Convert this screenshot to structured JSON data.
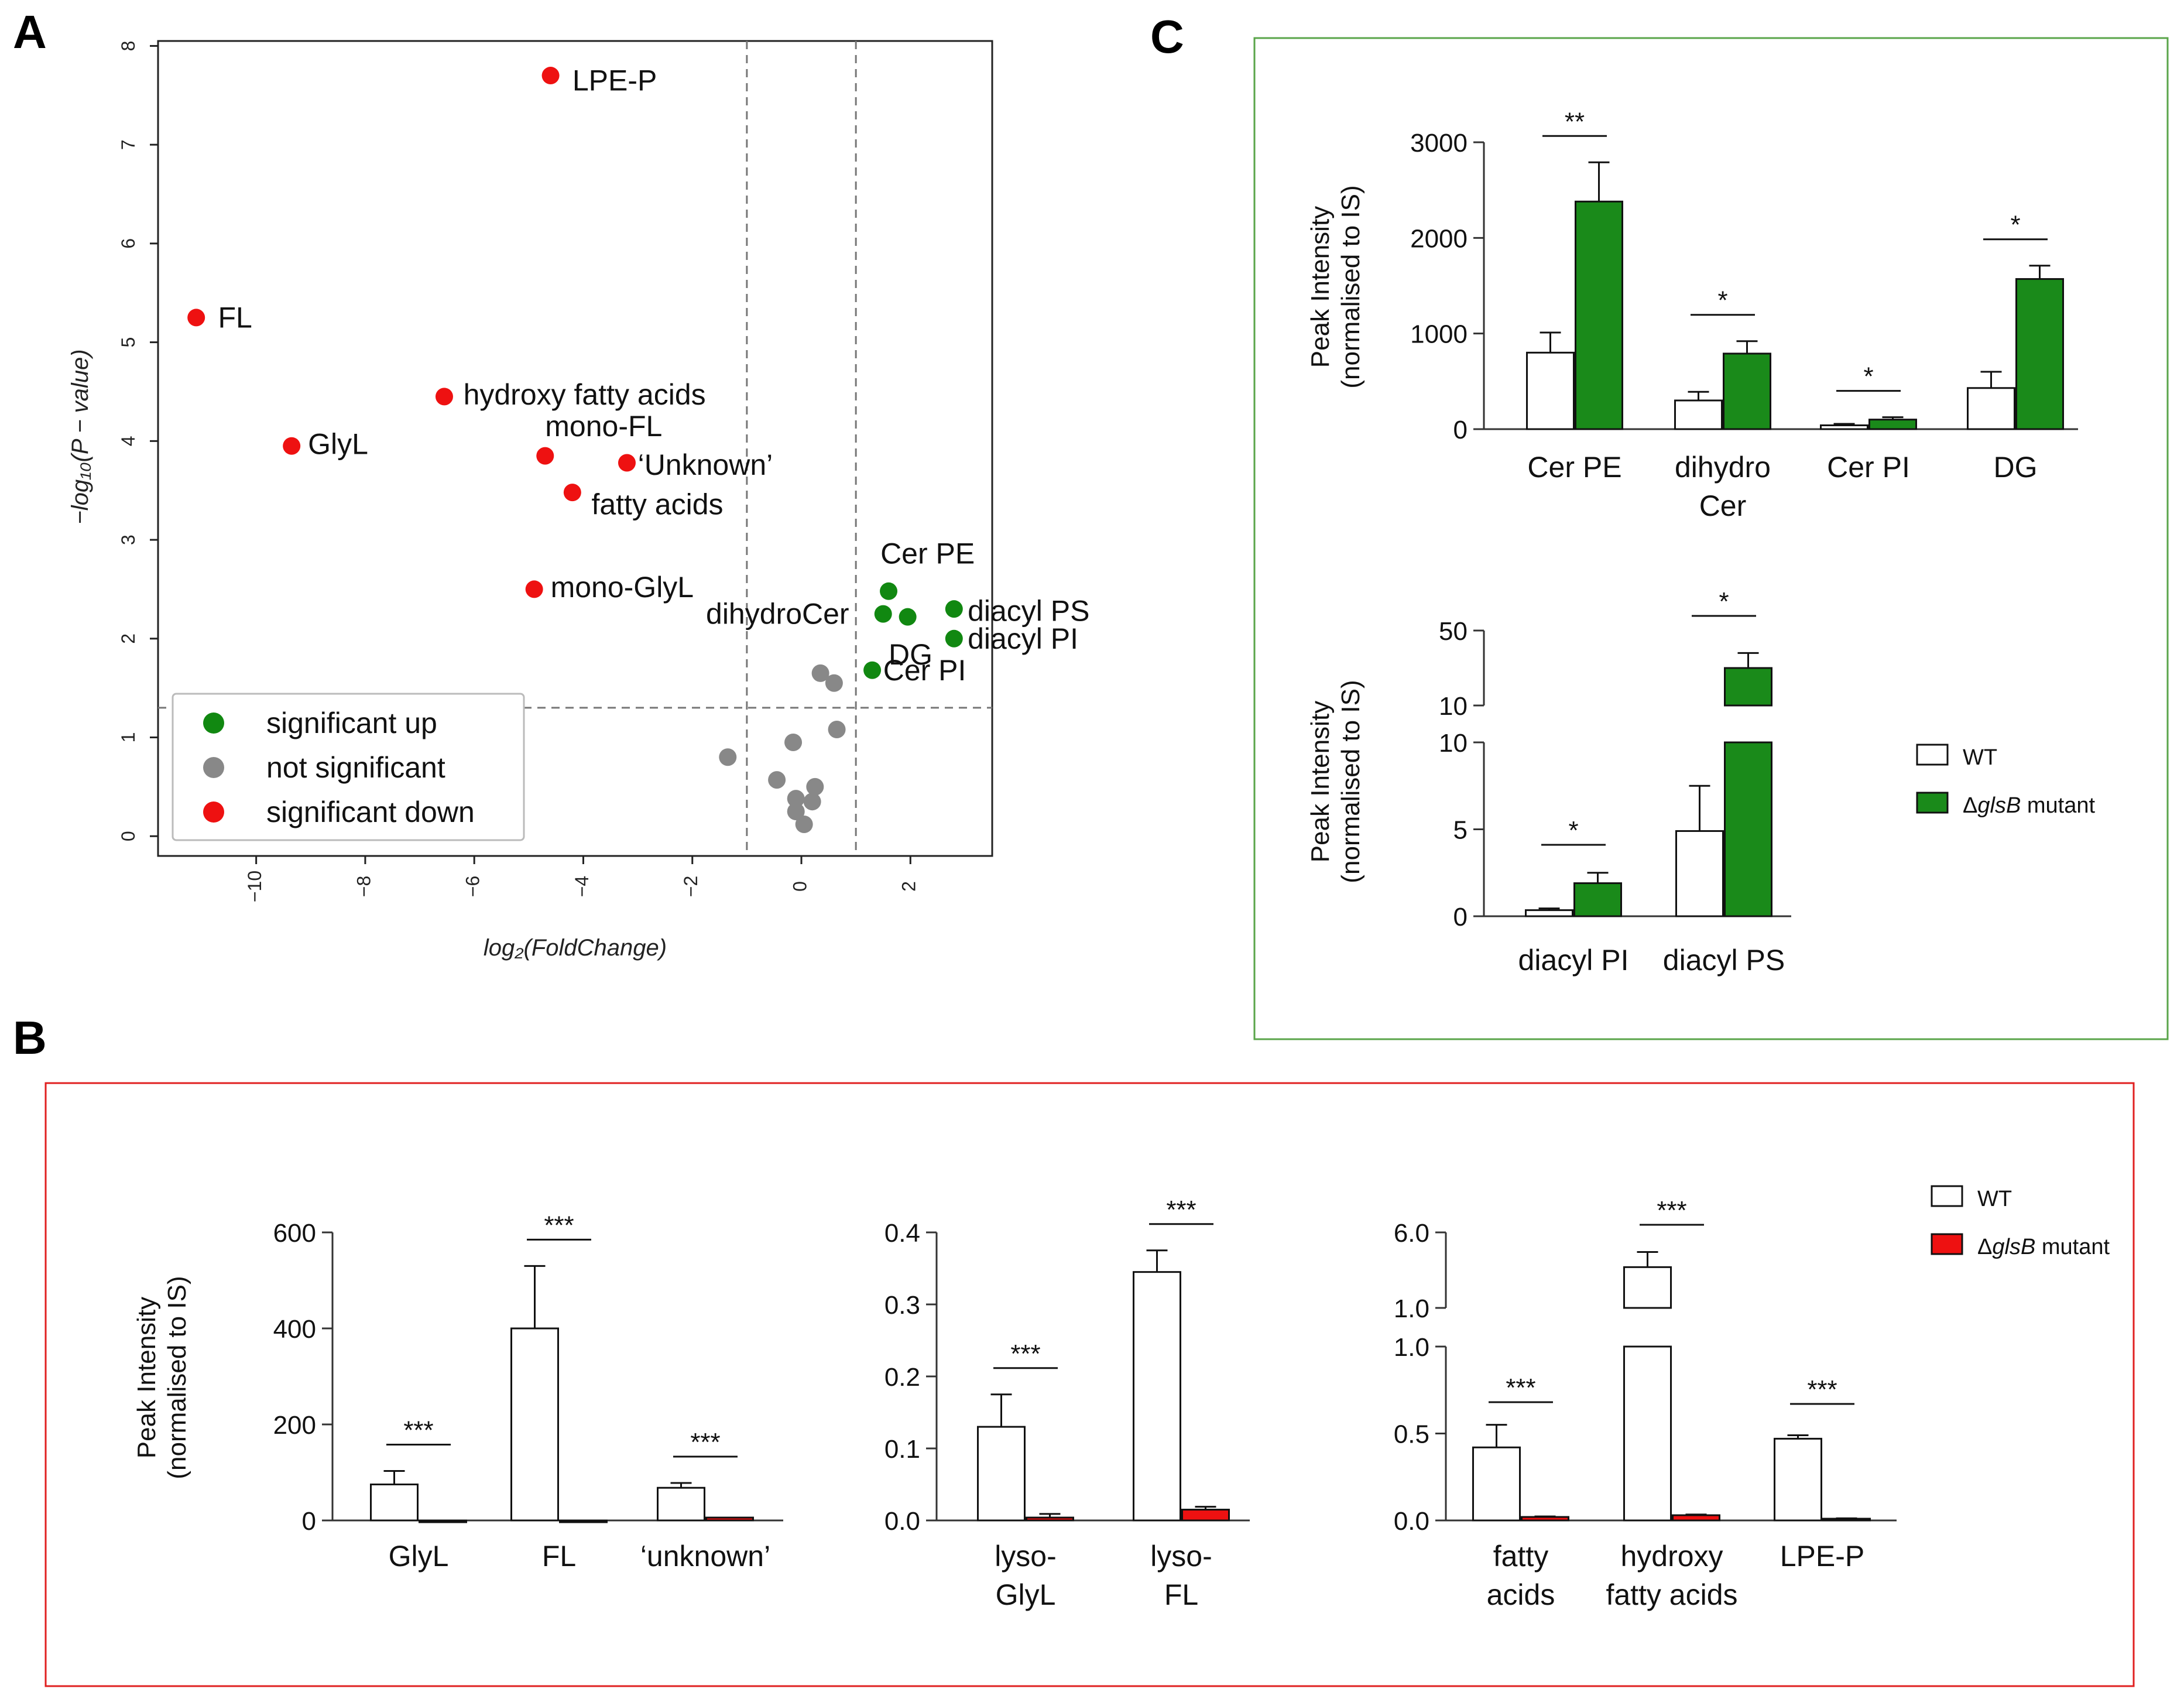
{
  "panel_labels": {
    "a": "A",
    "b": "B",
    "c": "C"
  },
  "chart_data": [
    {
      "id": "A",
      "type": "scatter",
      "xlabel": "log₂(FoldChange)",
      "ylabel": "−log₁₀(P − value)",
      "xlim": [
        -11.8,
        3.5
      ],
      "ylim": [
        -0.2,
        8.05
      ],
      "xticks": [
        -10,
        -8,
        -6,
        -4,
        -2,
        0,
        2
      ],
      "yticks": [
        0,
        1,
        2,
        3,
        4,
        5,
        6,
        7,
        8
      ],
      "ticklabels_x": [
        "−10",
        "−8",
        "−6",
        "−4",
        "−2",
        "0",
        "2"
      ],
      "ticklabels_y": [
        "0",
        "1",
        "2",
        "3",
        "4",
        "5",
        "6",
        "7",
        "8"
      ],
      "grid": false,
      "thresholds": {
        "x": [
          -1,
          1
        ],
        "y": 1.3
      },
      "legend": {
        "position": "bottom-left",
        "entries": [
          {
            "label": "significant up",
            "color": "#118811"
          },
          {
            "label": "not significant",
            "color": "#888888"
          },
          {
            "label": "significant down",
            "color": "#ee1111"
          }
        ]
      },
      "colors": {
        "up": "#118811",
        "ns": "#888888",
        "down": "#ee1111"
      },
      "points": [
        {
          "x": -4.6,
          "y": 7.7,
          "group": "down",
          "label": "LPE-P",
          "ldx": 0.4,
          "ldy": -0.05
        },
        {
          "x": -11.1,
          "y": 5.25,
          "group": "down",
          "label": "FL",
          "ldx": 0.4,
          "ldy": 0.0
        },
        {
          "x": -6.55,
          "y": 4.45,
          "group": "down",
          "label": "hydroxy fatty acids",
          "ldx": 0.35,
          "ldy": 0.02
        },
        {
          "x": -9.35,
          "y": 3.95,
          "group": "down",
          "label": "GlyL",
          "ldx": 0.3,
          "ldy": 0.02
        },
        {
          "x": -4.7,
          "y": 3.85,
          "group": "down",
          "label": "mono-FL",
          "ldx": 0.0,
          "ldy": 0.3
        },
        {
          "x": -3.2,
          "y": 3.78,
          "group": "down",
          "label": "‘Unknown’",
          "ldx": 0.2,
          "ldy": -0.02
        },
        {
          "x": -4.2,
          "y": 3.48,
          "group": "down",
          "label": "fatty acids",
          "ldx": 0.35,
          "ldy": -0.12
        },
        {
          "x": -4.9,
          "y": 2.5,
          "group": "down",
          "label": "mono-GlyL",
          "ldx": 0.3,
          "ldy": 0.02
        },
        {
          "x": 1.6,
          "y": 2.48,
          "group": "up",
          "label": "Cer PE",
          "ldx": -0.15,
          "ldy": 0.38
        },
        {
          "x": 1.5,
          "y": 2.25,
          "group": "up",
          "label": "dihydroCer",
          "ldx": -3.25,
          "ldy": 0.0
        },
        {
          "x": 1.95,
          "y": 2.22,
          "group": "up",
          "label": "DG",
          "ldx": -0.35,
          "ldy": -0.38
        },
        {
          "x": 2.8,
          "y": 2.3,
          "group": "up",
          "label": "diacyl PS",
          "ldx": 0.25,
          "ldy": -0.02
        },
        {
          "x": 2.8,
          "y": 2.0,
          "group": "up",
          "label": "diacyl PI",
          "ldx": 0.25,
          "ldy": 0.0
        },
        {
          "x": 1.3,
          "y": 1.68,
          "group": "up",
          "label": "Cer PI",
          "ldx": 0.2,
          "ldy": 0.0
        },
        {
          "x": 0.35,
          "y": 1.65,
          "group": "ns"
        },
        {
          "x": 0.6,
          "y": 1.55,
          "group": "ns"
        },
        {
          "x": 0.65,
          "y": 1.08,
          "group": "ns"
        },
        {
          "x": -0.15,
          "y": 0.95,
          "group": "ns"
        },
        {
          "x": -1.35,
          "y": 0.8,
          "group": "ns"
        },
        {
          "x": -0.45,
          "y": 0.57,
          "group": "ns"
        },
        {
          "x": 0.25,
          "y": 0.5,
          "group": "ns"
        },
        {
          "x": -0.1,
          "y": 0.38,
          "group": "ns"
        },
        {
          "x": 0.2,
          "y": 0.35,
          "group": "ns"
        },
        {
          "x": -0.1,
          "y": 0.25,
          "group": "ns"
        },
        {
          "x": 0.05,
          "y": 0.12,
          "group": "ns"
        }
      ]
    },
    {
      "id": "C1",
      "type": "bar",
      "ylabel": [
        "Peak Intensity",
        "(normalised to IS)"
      ],
      "categories": [
        [
          "Cer PE"
        ],
        [
          "dihydro",
          "Cer"
        ],
        [
          "Cer PI"
        ],
        [
          "DG"
        ]
      ],
      "ylim": [
        0,
        3000
      ],
      "yticks": [
        0,
        1000,
        2000,
        3000
      ],
      "ticklabels_y": [
        "0",
        "1000",
        "2000",
        "3000"
      ],
      "series": [
        {
          "name": "WT",
          "color": "#ffffff",
          "values": [
            800,
            300,
            40,
            430
          ],
          "errors": [
            210,
            90,
            15,
            170
          ]
        },
        {
          "name": "ΔglsB mutant",
          "color": "#1a8a1a",
          "values": [
            2380,
            790,
            100,
            1570
          ],
          "errors": [
            410,
            130,
            25,
            140
          ]
        }
      ],
      "significance": [
        "**",
        "*",
        "*",
        "*"
      ]
    },
    {
      "id": "C2",
      "type": "bar",
      "broken_axis": true,
      "ylabel": [
        "Peak Intensity",
        "(normalised to IS)"
      ],
      "categories": [
        [
          "diacyl PI"
        ],
        [
          "diacyl PS"
        ]
      ],
      "ylim_lower": [
        0,
        10
      ],
      "ylim_upper": [
        10,
        50
      ],
      "yticks_lower": [
        0,
        5,
        10
      ],
      "yticks_upper": [
        10,
        50
      ],
      "ticklabels_y_lower": [
        "0",
        "5",
        "10"
      ],
      "ticklabels_y_upper": [
        "10",
        "50"
      ],
      "series": [
        {
          "name": "WT",
          "color": "#ffffff",
          "values": [
            0.35,
            4.9
          ],
          "errors": [
            0.1,
            2.6
          ]
        },
        {
          "name": "ΔglsB mutant",
          "color": "#1a8a1a",
          "values": [
            1.9,
            30
          ],
          "errors": [
            0.6,
            8
          ]
        }
      ],
      "significance": [
        "*",
        "*"
      ],
      "legend": {
        "position": "right",
        "entries": [
          {
            "label": "WT",
            "italic": "",
            "suffix": "",
            "color": "#ffffff"
          },
          {
            "label": "Δ",
            "italic": "glsB",
            "suffix": " mutant",
            "color": "#1a8a1a"
          }
        ]
      }
    },
    {
      "id": "B1",
      "type": "bar",
      "ylabel": [
        "Peak Intensity",
        "(normalised to IS)"
      ],
      "categories": [
        [
          "GlyL"
        ],
        [
          "FL"
        ],
        [
          "‘unknown’"
        ]
      ],
      "ylim": [
        0,
        600
      ],
      "yticks": [
        0,
        200,
        400,
        600
      ],
      "ticklabels_y": [
        "0",
        "200",
        "400",
        "600"
      ],
      "series": [
        {
          "name": "WT",
          "color": "#ffffff",
          "values": [
            75,
            400,
            68
          ],
          "errors": [
            28,
            130,
            10
          ]
        },
        {
          "name": "ΔglsB mutant",
          "color": "#ee1111",
          "values": [
            0,
            0,
            6
          ],
          "errors": [
            0,
            0,
            0
          ]
        }
      ],
      "significance": [
        "***",
        "***",
        "***"
      ]
    },
    {
      "id": "B2",
      "type": "bar",
      "ylabel": [],
      "categories": [
        [
          "lyso-",
          "GlyL"
        ],
        [
          "lyso-",
          "FL"
        ]
      ],
      "ylim": [
        0,
        0.4
      ],
      "yticks": [
        0,
        0.1,
        0.2,
        0.3,
        0.4
      ],
      "ticklabels_y": [
        "0.0",
        "0.1",
        "0.2",
        "0.3",
        "0.4"
      ],
      "series": [
        {
          "name": "WT",
          "color": "#ffffff",
          "values": [
            0.13,
            0.345
          ],
          "errors": [
            0.045,
            0.03
          ]
        },
        {
          "name": "ΔglsB mutant",
          "color": "#ee1111",
          "values": [
            0.004,
            0.015
          ],
          "errors": [
            0.005,
            0.004
          ]
        }
      ],
      "significance": [
        "***",
        "***"
      ]
    },
    {
      "id": "B3",
      "type": "bar",
      "broken_axis": true,
      "ylabel": [],
      "categories": [
        [
          "fatty",
          "acids"
        ],
        [
          "hydroxy",
          "fatty acids"
        ],
        [
          "LPE-P"
        ]
      ],
      "ylim_lower": [
        0,
        1.0
      ],
      "ylim_upper": [
        1.0,
        6.0
      ],
      "yticks_lower": [
        0,
        0.5,
        1.0
      ],
      "yticks_upper": [
        1.0,
        6.0
      ],
      "ticklabels_y_lower": [
        "0.0",
        "0.5",
        "1.0"
      ],
      "ticklabels_y_upper": [
        "1.0",
        "6.0"
      ],
      "series": [
        {
          "name": "WT",
          "color": "#ffffff",
          "values": [
            0.42,
            3.7,
            0.47
          ],
          "errors": [
            0.13,
            1.0,
            0.02
          ]
        },
        {
          "name": "ΔglsB mutant",
          "color": "#ee1111",
          "values": [
            0.02,
            0.03,
            0.01
          ],
          "errors": [
            0.003,
            0.004,
            0.002
          ]
        }
      ],
      "significance": [
        "***",
        "***",
        "***"
      ],
      "legend": {
        "position": "right",
        "entries": [
          {
            "label": "WT",
            "italic": "",
            "suffix": "",
            "color": "#ffffff"
          },
          {
            "label": "Δ",
            "italic": "glsB",
            "suffix": " mutant",
            "color": "#ee1111"
          }
        ]
      }
    }
  ]
}
